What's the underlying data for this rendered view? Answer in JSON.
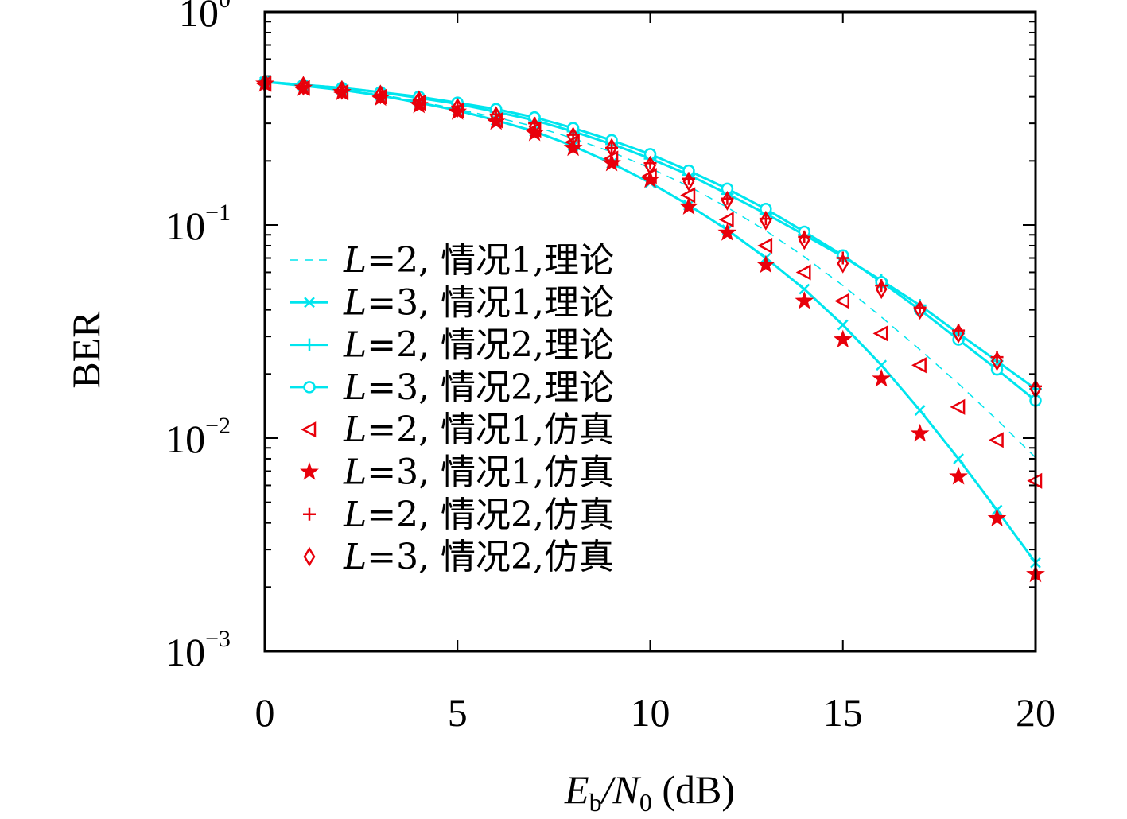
{
  "chart_data": {
    "type": "line",
    "title": "",
    "xlabel": "E_b/N_0 (dB)",
    "xlabel_parts": {
      "main": "E",
      "sub": "b",
      "mid": "/N",
      "sub2": "0",
      "unit": " (dB)"
    },
    "ylabel": "BER",
    "xlim": [
      0,
      20
    ],
    "ylim": [
      0.001,
      1
    ],
    "yscale": "log",
    "grid": false,
    "legend_position": "center-left",
    "x_ticks": [
      {
        "value": 0,
        "label": "0"
      },
      {
        "value": 5,
        "label": "5"
      },
      {
        "value": 10,
        "label": "10"
      },
      {
        "value": 15,
        "label": "15"
      },
      {
        "value": 20,
        "label": "20"
      }
    ],
    "y_ticks": [
      {
        "value": 1,
        "base": "10",
        "exp": "0"
      },
      {
        "value": 0.1,
        "base": "10",
        "exp": "−1"
      },
      {
        "value": 0.01,
        "base": "10",
        "exp": "−2"
      },
      {
        "value": 0.001,
        "base": "10",
        "exp": "−3"
      }
    ],
    "x": [
      0,
      1,
      2,
      3,
      4,
      5,
      6,
      7,
      8,
      9,
      10,
      11,
      12,
      13,
      14,
      15,
      16,
      17,
      18,
      19,
      20
    ],
    "series": [
      {
        "name": "L=2, 情况1,理论",
        "legend_parts": {
          "var": "L",
          "rest": "=2, 情况1,理论"
        },
        "color": "#00e5ee",
        "line": "dashed",
        "marker": "none",
        "values": [
          0.47,
          0.45,
          0.43,
          0.41,
          0.38,
          0.35,
          0.32,
          0.29,
          0.255,
          0.22,
          0.185,
          0.152,
          0.121,
          0.094,
          0.071,
          0.052,
          0.037,
          0.026,
          0.018,
          0.0122,
          0.0081
        ]
      },
      {
        "name": "L=3, 情况1,理论",
        "legend_parts": {
          "var": "L",
          "rest": "=3, 情况1,理论"
        },
        "color": "#00e5ee",
        "line": "solid",
        "marker": "x",
        "values": [
          0.47,
          0.45,
          0.43,
          0.405,
          0.375,
          0.345,
          0.31,
          0.275,
          0.235,
          0.195,
          0.158,
          0.124,
          0.095,
          0.07,
          0.05,
          0.034,
          0.022,
          0.0135,
          0.008,
          0.0046,
          0.0026
        ]
      },
      {
        "name": "L=2, 情况2,理论",
        "legend_parts": {
          "var": "L",
          "rest": "=2, 情况2,理论"
        },
        "color": "#00e5ee",
        "line": "solid",
        "marker": "plus",
        "values": [
          0.47,
          0.455,
          0.44,
          0.42,
          0.395,
          0.37,
          0.34,
          0.31,
          0.275,
          0.24,
          0.205,
          0.172,
          0.14,
          0.113,
          0.09,
          0.071,
          0.055,
          0.042,
          0.031,
          0.023,
          0.017
        ]
      },
      {
        "name": "L=3, 情况2,理论",
        "legend_parts": {
          "var": "L",
          "rest": "=3, 情况2,理论"
        },
        "color": "#00e5ee",
        "line": "solid",
        "marker": "circle",
        "values": [
          0.47,
          0.455,
          0.44,
          0.42,
          0.4,
          0.375,
          0.35,
          0.32,
          0.285,
          0.25,
          0.215,
          0.18,
          0.148,
          0.119,
          0.093,
          0.072,
          0.054,
          0.04,
          0.029,
          0.021,
          0.015
        ]
      },
      {
        "name": "L=2, 情况1,仿真",
        "legend_parts": {
          "var": "L",
          "rest": "=2, 情况1,仿真"
        },
        "color": "#e8000b",
        "line": "none",
        "marker": "triangle-left",
        "values": [
          0.46,
          0.44,
          0.42,
          0.4,
          0.375,
          0.345,
          0.31,
          0.28,
          0.245,
          0.205,
          0.17,
          0.138,
          0.106,
          0.08,
          0.06,
          0.044,
          0.031,
          0.022,
          0.014,
          0.0098,
          0.0063
        ]
      },
      {
        "name": "L=3, 情况1,仿真",
        "legend_parts": {
          "var": "L",
          "rest": "=3, 情况1,仿真"
        },
        "color": "#e8000b",
        "line": "none",
        "marker": "star",
        "values": [
          0.46,
          0.44,
          0.42,
          0.395,
          0.365,
          0.34,
          0.305,
          0.27,
          0.23,
          0.195,
          0.163,
          0.122,
          0.092,
          0.065,
          0.044,
          0.029,
          0.019,
          0.0105,
          0.0066,
          0.0042,
          0.0023
        ]
      },
      {
        "name": "L=2, 情况2,仿真",
        "legend_parts": {
          "var": "L",
          "rest": "=2, 情况2,仿真"
        },
        "color": "#e8000b",
        "line": "none",
        "marker": "plus",
        "values": [
          0.465,
          0.45,
          0.43,
          0.41,
          0.385,
          0.36,
          0.33,
          0.3,
          0.265,
          0.23,
          0.195,
          0.165,
          0.133,
          0.107,
          0.088,
          0.07,
          0.052,
          0.041,
          0.032,
          0.024,
          0.0175
        ]
      },
      {
        "name": "L=3, 情况2,仿真",
        "legend_parts": {
          "var": "L",
          "rest": "=3, 情况2,仿真"
        },
        "color": "#e8000b",
        "line": "none",
        "marker": "diamond",
        "values": [
          0.465,
          0.45,
          0.43,
          0.41,
          0.385,
          0.355,
          0.325,
          0.29,
          0.26,
          0.23,
          0.19,
          0.16,
          0.13,
          0.105,
          0.085,
          0.066,
          0.05,
          0.04,
          0.031,
          0.023,
          0.017
        ]
      }
    ]
  }
}
